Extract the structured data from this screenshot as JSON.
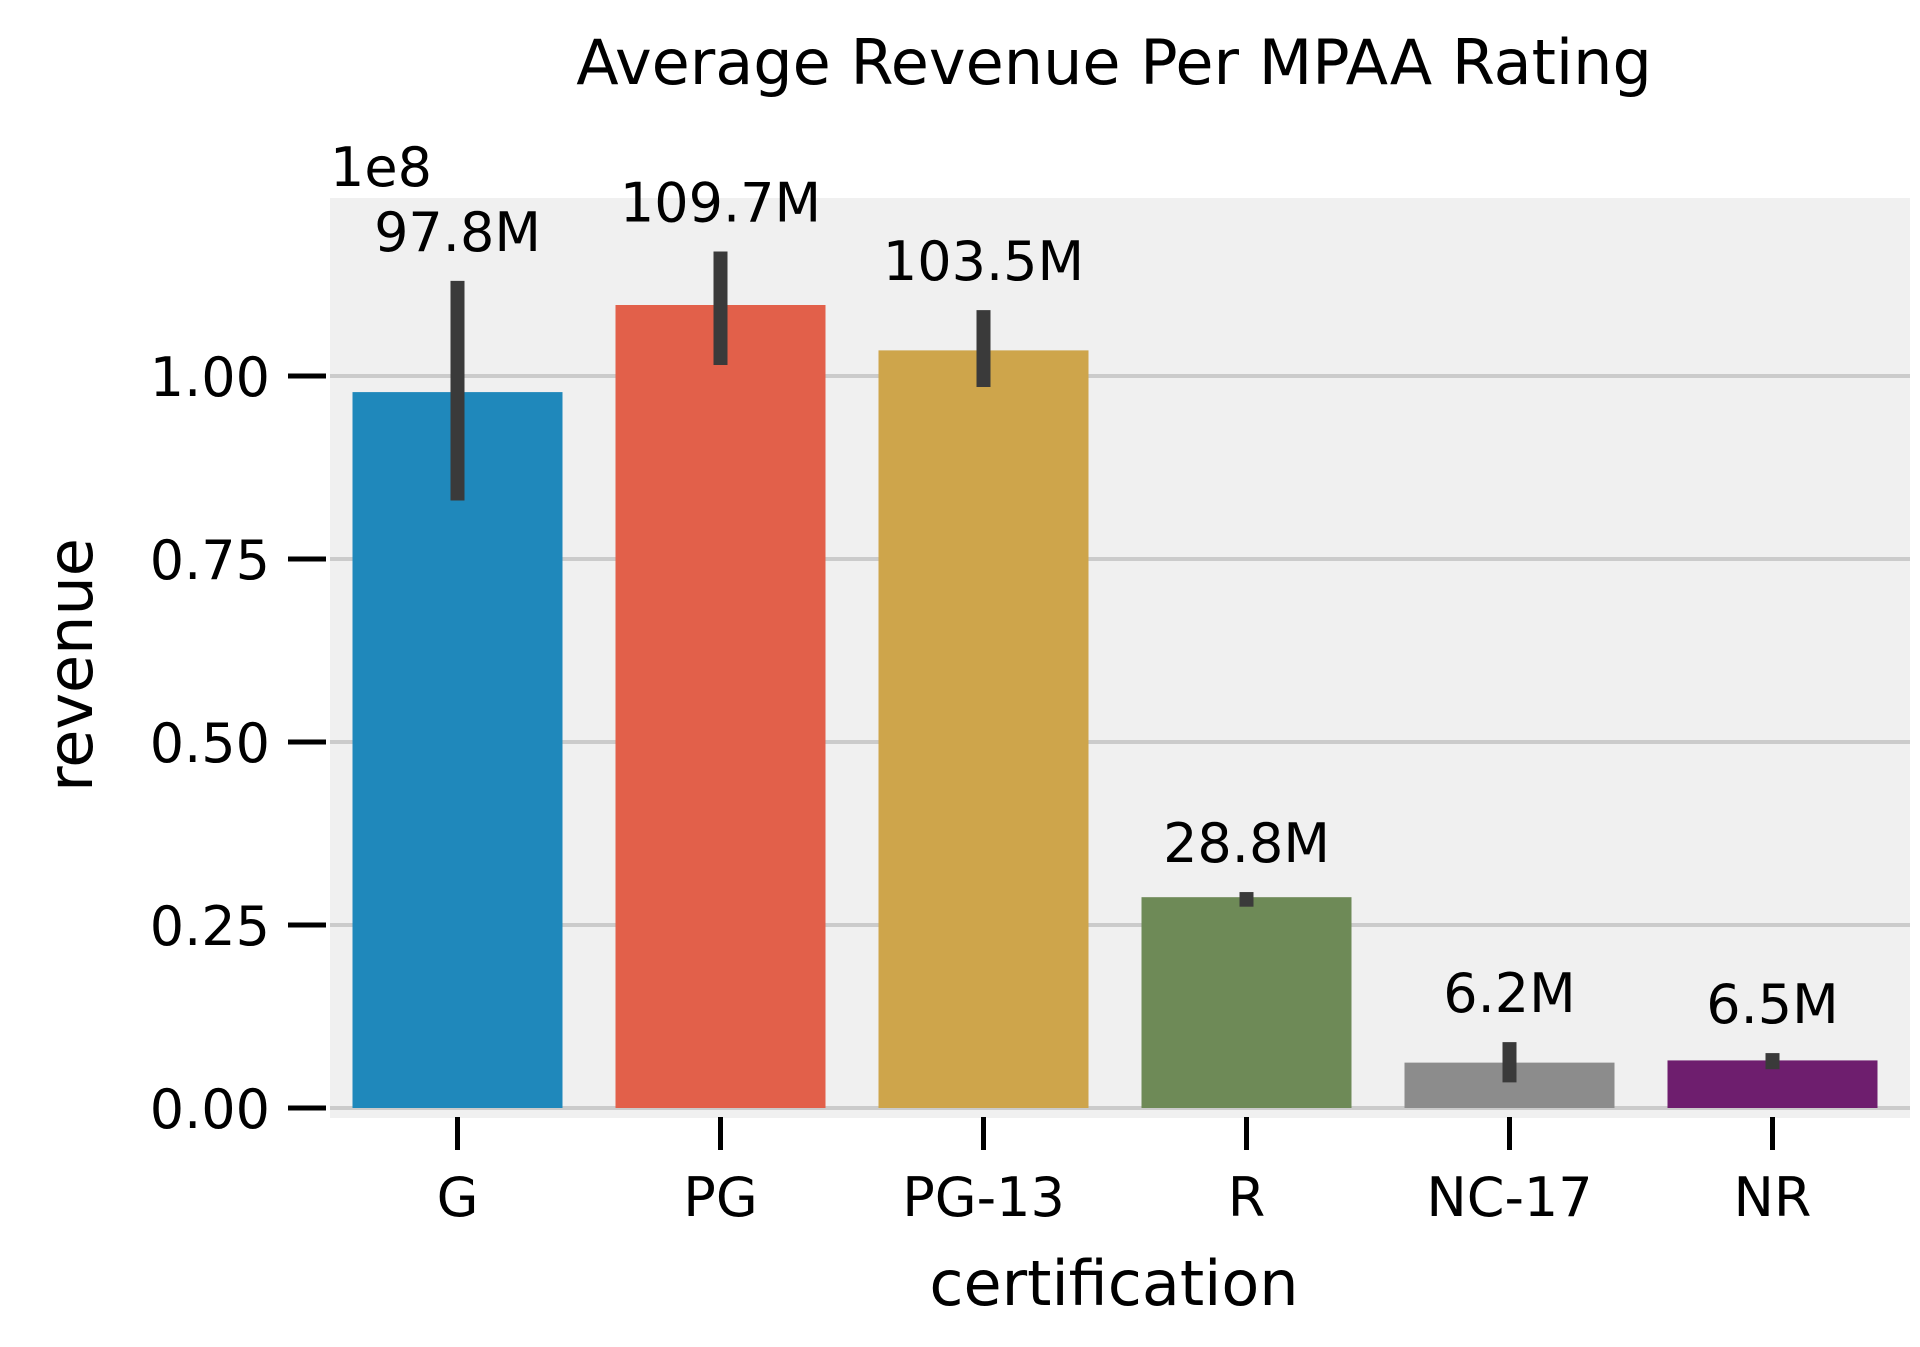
{
  "chart_data": {
    "type": "bar",
    "title": "Average Revenue Per MPAA Rating",
    "xlabel": "certification",
    "ylabel": "revenue",
    "y_offset_text": "1e8",
    "categories": [
      "G",
      "PG",
      "PG-13",
      "R",
      "NC-17",
      "NR"
    ],
    "values": [
      97.8,
      109.7,
      103.5,
      28.8,
      6.2,
      6.5
    ],
    "value_unit": "millions",
    "data_labels": [
      "97.8M",
      "109.7M",
      "103.5M",
      "28.8M",
      "6.2M",
      "6.5M"
    ],
    "error_bars": [
      {
        "low": 83,
        "high": 113
      },
      {
        "low": 101.5,
        "high": 117
      },
      {
        "low": 98.5,
        "high": 109
      }
    ],
    "error_bars_rest": [
      {
        "low": 27.5,
        "high": 29.5
      },
      {
        "low": 3.5,
        "high": 9.0
      },
      {
        "low": 5.3,
        "high": 7.5
      }
    ],
    "yticks": [
      "0.00",
      "0.25",
      "0.50",
      "0.75",
      "1.00"
    ],
    "ytick_values": [
      0,
      25,
      50,
      75,
      100
    ],
    "ylim": [
      0,
      124
    ],
    "grid": true,
    "colors": [
      "#1f88bb",
      "#e2604a",
      "#cea54b",
      "#6e8a57",
      "#8c8c8c",
      "#6e1e6e"
    ],
    "error_color": "#3a3a3a",
    "plot_background": "#f0f0f0",
    "grid_color": "#cbcbcb"
  }
}
